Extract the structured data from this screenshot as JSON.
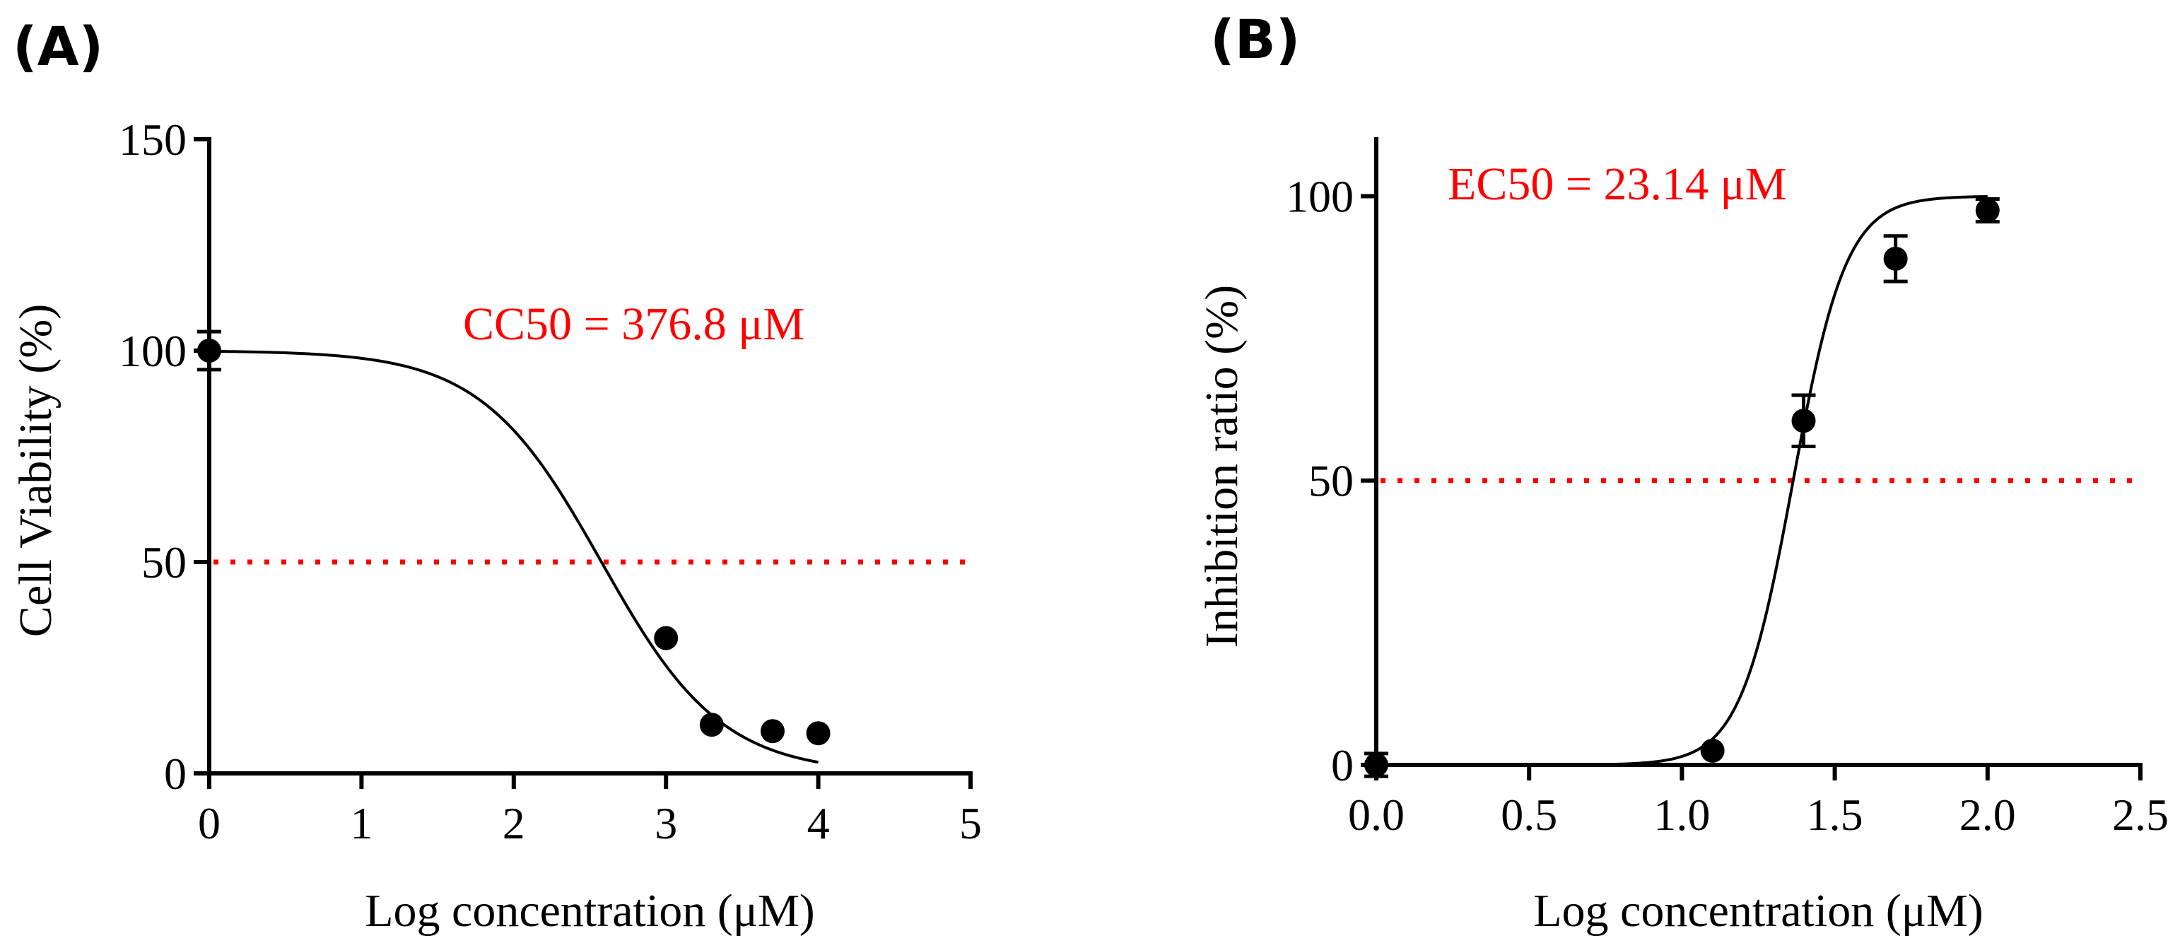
{
  "colors": {
    "marker": "#000000",
    "fit_line": "#000000",
    "threshold_line": "#ff0000",
    "annotation_text": "#ff0000"
  },
  "chart_data": [
    {
      "panel_label": "(A)",
      "type": "scatter",
      "title": "",
      "xlabel": "Log concentration (μM)",
      "ylabel": "Cell Viability (%)",
      "xlim": [
        0,
        5
      ],
      "ylim": [
        0,
        150
      ],
      "xticks": [
        0,
        1,
        2,
        3,
        4,
        5
      ],
      "xtick_labels": [
        "0",
        "1",
        "2",
        "3",
        "4",
        "5"
      ],
      "yticks": [
        0,
        50,
        100,
        150
      ],
      "ytick_labels": [
        "0",
        "50",
        "100",
        "150"
      ],
      "grid": false,
      "series": [
        {
          "name": "Cell viability",
          "x": [
            0,
            3,
            3.3,
            3.7,
            4
          ],
          "y": [
            100,
            32,
            11.5,
            10,
            9.5
          ],
          "error": [
            4.5,
            0,
            0,
            0,
            0
          ]
        }
      ],
      "fit_curve": {
        "model": "sigmoidal dose-response",
        "top": 100,
        "bottom": 0,
        "log_x50": 2.576,
        "hill_slope": -1.1,
        "x_range": [
          0,
          4
        ]
      },
      "threshold": {
        "y": 50,
        "style": "dotted"
      },
      "annotation": "CC50 = 376.8 μM"
    },
    {
      "panel_label": "(B)",
      "type": "scatter",
      "title": "",
      "xlabel": "Log concentration (μM)",
      "ylabel": "Inhibition ratio (%)",
      "xlim": [
        0,
        2.5
      ],
      "ylim": [
        0,
        110
      ],
      "xticks": [
        0,
        0.5,
        1,
        1.5,
        2,
        2.5
      ],
      "xtick_labels": [
        "0.0",
        "0.5",
        "1.0",
        "1.5",
        "2.0",
        "2.5"
      ],
      "yticks": [
        0,
        50,
        100
      ],
      "ytick_labels": [
        "0",
        "50",
        "100"
      ],
      "grid": false,
      "series": [
        {
          "name": "Inhibition",
          "x": [
            0,
            1.1,
            1.398,
            1.699,
            2
          ],
          "y": [
            0,
            2.5,
            60.5,
            89,
            97.5
          ],
          "error": [
            2,
            0,
            4.5,
            4,
            2
          ]
        }
      ],
      "fit_curve": {
        "model": "sigmoidal dose-response",
        "top": 100,
        "bottom": 0,
        "log_x50": 1.364,
        "hill_slope": 5,
        "x_range": [
          0,
          2
        ]
      },
      "threshold": {
        "y": 50,
        "style": "dotted"
      },
      "annotation": "EC50 = 23.14 μM"
    }
  ]
}
